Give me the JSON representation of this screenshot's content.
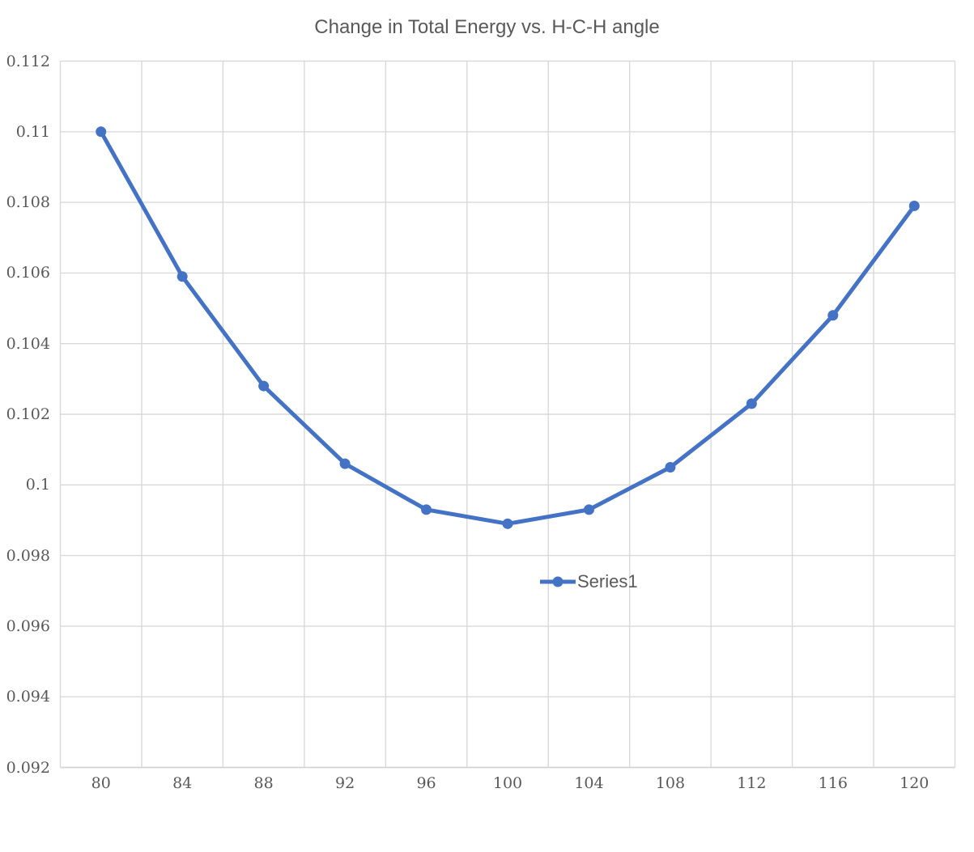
{
  "title": "Change in Total Energy vs. H-C-H angle",
  "legend": {
    "label": "Series1",
    "marker": "circle-on-line"
  },
  "colors": {
    "series": "#4472C4",
    "gridline": "#D9D9D9",
    "axis_line": "#D2D2D2",
    "text": "#595959",
    "background": "#FFFFFF"
  },
  "chart_data": {
    "type": "line",
    "title": "Change in Total Energy vs. H-C-H angle",
    "xlabel": "",
    "ylabel": "",
    "x": [
      80,
      84,
      88,
      92,
      96,
      100,
      104,
      108,
      112,
      116,
      120
    ],
    "series": [
      {
        "name": "Series1",
        "marker": "circle",
        "values": [
          0.11,
          0.1059,
          0.1028,
          0.1006,
          0.0993,
          0.0989,
          0.0993,
          0.1005,
          0.1023,
          0.1048,
          0.1079
        ]
      }
    ],
    "x_tick_labels": [
      "80",
      "84",
      "88",
      "92",
      "96",
      "100",
      "104",
      "108",
      "112",
      "116",
      "120"
    ],
    "y_tick_labels": [
      "0.112",
      "0.11",
      "0.108",
      "0.106",
      "0.104",
      "0.102",
      "0.1",
      "0.098",
      "0.096",
      "0.094",
      "0.092"
    ],
    "ylim": [
      0.092,
      0.112
    ],
    "y_tick_step": 0.002,
    "x_axis_type": "categorical-points-between-gridlines",
    "grid": "on",
    "legend_position": "inside-center"
  }
}
